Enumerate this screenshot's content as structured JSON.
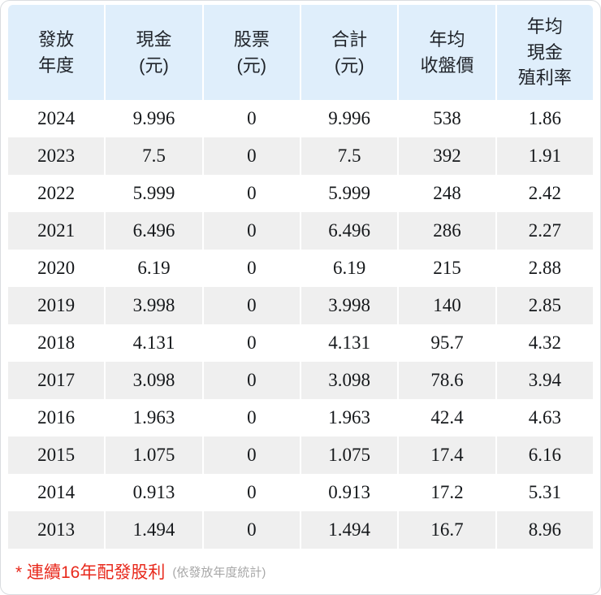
{
  "table": {
    "headers": [
      {
        "key": "year",
        "lines": [
          "發放",
          "年度"
        ]
      },
      {
        "key": "cash",
        "lines": [
          "現金",
          "(元)"
        ]
      },
      {
        "key": "stock",
        "lines": [
          "股票",
          "(元)"
        ]
      },
      {
        "key": "total",
        "lines": [
          "合計",
          "(元)"
        ]
      },
      {
        "key": "avg_close",
        "lines": [
          "年均",
          "收盤價"
        ]
      },
      {
        "key": "cash_yield",
        "lines": [
          "年均",
          "現金",
          "殖利率"
        ]
      }
    ],
    "rows": [
      [
        "2024",
        "9.996",
        "0",
        "9.996",
        "538",
        "1.86"
      ],
      [
        "2023",
        "7.5",
        "0",
        "7.5",
        "392",
        "1.91"
      ],
      [
        "2022",
        "5.999",
        "0",
        "5.999",
        "248",
        "2.42"
      ],
      [
        "2021",
        "6.496",
        "0",
        "6.496",
        "286",
        "2.27"
      ],
      [
        "2020",
        "6.19",
        "0",
        "6.19",
        "215",
        "2.88"
      ],
      [
        "2019",
        "3.998",
        "0",
        "3.998",
        "140",
        "2.85"
      ],
      [
        "2018",
        "4.131",
        "0",
        "4.131",
        "95.7",
        "4.32"
      ],
      [
        "2017",
        "3.098",
        "0",
        "3.098",
        "78.6",
        "3.94"
      ],
      [
        "2016",
        "1.963",
        "0",
        "1.963",
        "42.4",
        "4.63"
      ],
      [
        "2015",
        "1.075",
        "0",
        "1.075",
        "17.4",
        "6.16"
      ],
      [
        "2014",
        "0.913",
        "0",
        "0.913",
        "17.2",
        "5.31"
      ],
      [
        "2013",
        "1.494",
        "0",
        "1.494",
        "16.7",
        "8.96"
      ]
    ]
  },
  "footnote": {
    "main": "* 連續16年配發股利",
    "sub": "(依發放年度統計)"
  },
  "colors": {
    "header_bg": "#dfeefb",
    "stripe_bg": "#efefef",
    "footnote_red": "#e8291c",
    "footnote_gray": "#a8a8a8"
  }
}
